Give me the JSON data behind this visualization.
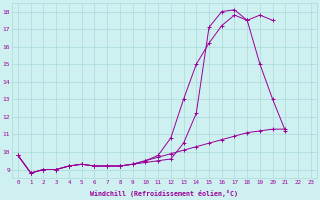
{
  "xlabel": "Windchill (Refroidissement éolien,°C)",
  "x": [
    0,
    1,
    2,
    3,
    4,
    5,
    6,
    7,
    8,
    9,
    10,
    11,
    12,
    13,
    14,
    15,
    16,
    17,
    18,
    19,
    20,
    21,
    22,
    23
  ],
  "line1": [
    9.8,
    8.8,
    9.0,
    9.0,
    9.2,
    9.3,
    9.2,
    9.2,
    9.2,
    9.3,
    9.4,
    9.5,
    9.6,
    10.5,
    12.2,
    17.1,
    18.0,
    18.1,
    17.5,
    15.0,
    13.0,
    11.2,
    null,
    null
  ],
  "line2": [
    9.8,
    8.8,
    9.0,
    9.0,
    9.2,
    9.3,
    9.2,
    9.2,
    9.2,
    9.3,
    9.5,
    9.8,
    10.8,
    13.0,
    15.0,
    16.2,
    17.2,
    17.8,
    17.5,
    17.8,
    17.5,
    null,
    null,
    null
  ],
  "line3": [
    9.8,
    8.8,
    9.0,
    9.0,
    9.2,
    9.3,
    9.2,
    9.2,
    9.2,
    9.3,
    9.5,
    9.7,
    9.9,
    10.1,
    10.3,
    10.5,
    10.7,
    10.9,
    11.1,
    11.2,
    11.3,
    11.3,
    null,
    null
  ],
  "line_color": "#990099",
  "bg_color": "#cff0f0",
  "grid_color": "#aadada",
  "ylim": [
    8.5,
    18.5
  ],
  "xlim": [
    -0.5,
    23.5
  ],
  "yticks": [
    9,
    10,
    11,
    12,
    13,
    14,
    15,
    16,
    17,
    18
  ],
  "xticks": [
    0,
    1,
    2,
    3,
    4,
    5,
    6,
    7,
    8,
    9,
    10,
    11,
    12,
    13,
    14,
    15,
    16,
    17,
    18,
    19,
    20,
    21,
    22,
    23
  ]
}
